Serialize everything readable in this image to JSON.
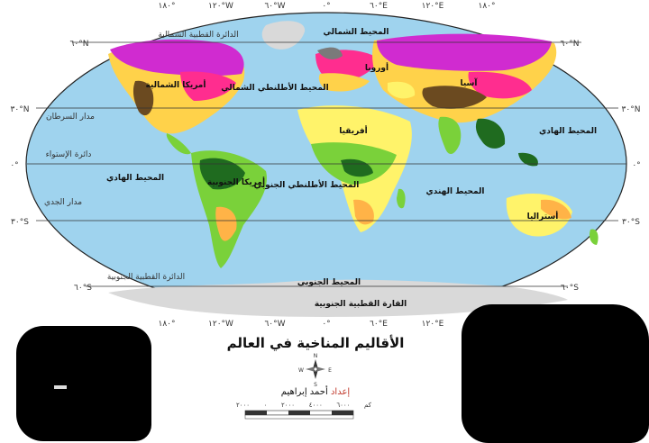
{
  "map": {
    "title": "الأقاليم المناخية في العالم",
    "author_prefix": "إعداد",
    "author_name": "أحمد إبراهيم",
    "scale_unit": "كم",
    "scale_ticks": [
      "٢٠٠٠",
      "٠",
      "٢٠٠٠",
      "٤٠٠٠",
      "٦٠٠٠"
    ],
    "compass": [
      "N",
      "S",
      "E",
      "W"
    ],
    "longitudes": [
      "١٨٠°",
      "١٢٠°W",
      "٦٠°W",
      "٠°",
      "٦٠°E",
      "١٢٠°E",
      "١٨٠°"
    ],
    "latitudes": [
      "٦٠°N",
      "٣٠°N",
      "٠°",
      "٣٠°S",
      "٦٠°S"
    ],
    "lines": {
      "tropic_cancer": "مدار السرطان",
      "equator": "دائرة الإستواء",
      "tropic_capricorn": "مدار الجدي",
      "antarctic_circle": "الدائرة القطبية الجنوبية",
      "arctic_circle": "الدائرة القطبية الشمالية"
    },
    "oceans": {
      "north_atlantic": "المحيط الأطلنطي الشمالي",
      "south_atlantic": "المحيط الأطلنطي الجنوبي",
      "pacific_west": "المحيط الهادي",
      "pacific_east": "المحيط الهادي",
      "indian": "المحيط الهندي",
      "arctic": "المحيط الشمالي",
      "southern": "المحيط الجنوبي"
    },
    "continents": {
      "north_america": "أمريكا الشمالية",
      "south_america": "أمريكا الجنوبية",
      "europe": "أوروبا",
      "asia": "آسيا",
      "africa": "أفريقيا",
      "australia": "أستراليا",
      "antarctica": "القارة القطبية الجنوبية"
    },
    "colors": {
      "ocean": "#9fd3ee",
      "polar": "#d9d9d9",
      "tundra": "#7a7a7a",
      "subarctic": "#d02bd0",
      "continental": "#ff2d8f",
      "temperate": "#ffd24a",
      "desert": "#fff36a",
      "semiarid": "#ffb347",
      "tropical_rain": "#1f6b1f",
      "savanna": "#7ad13a",
      "mountain": "#6b4a20"
    }
  }
}
